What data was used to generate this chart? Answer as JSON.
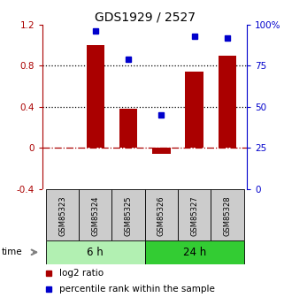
{
  "title": "GDS1929 / 2527",
  "samples": [
    "GSM85323",
    "GSM85324",
    "GSM85325",
    "GSM85326",
    "GSM85327",
    "GSM85328"
  ],
  "log2_ratio": [
    0.0,
    1.0,
    0.38,
    -0.06,
    0.74,
    0.9
  ],
  "percentile_rank": [
    null,
    96,
    79,
    45,
    93,
    92
  ],
  "groups": [
    {
      "label": "6 h",
      "samples": [
        0,
        1,
        2
      ],
      "color": "#b2f0b2"
    },
    {
      "label": "24 h",
      "samples": [
        3,
        4,
        5
      ],
      "color": "#33cc33"
    }
  ],
  "bar_color": "#aa0000",
  "dot_color": "#0000cc",
  "ylim_left": [
    -0.4,
    1.2
  ],
  "ylim_right": [
    0,
    100
  ],
  "yticks_left": [
    -0.4,
    0.0,
    0.4,
    0.8,
    1.2
  ],
  "ytick_labels_left": [
    "-0.4",
    "0",
    "0.4",
    "0.8",
    "1.2"
  ],
  "yticks_right": [
    0,
    25,
    50,
    75,
    100
  ],
  "ytick_labels_right": [
    "0",
    "25",
    "50",
    "75",
    "100%"
  ],
  "hlines_dotted": [
    0.4,
    0.8
  ],
  "hline_dashed": 0.0,
  "background_color": "#ffffff",
  "sample_box_color": "#cccccc",
  "bar_width": 0.55
}
